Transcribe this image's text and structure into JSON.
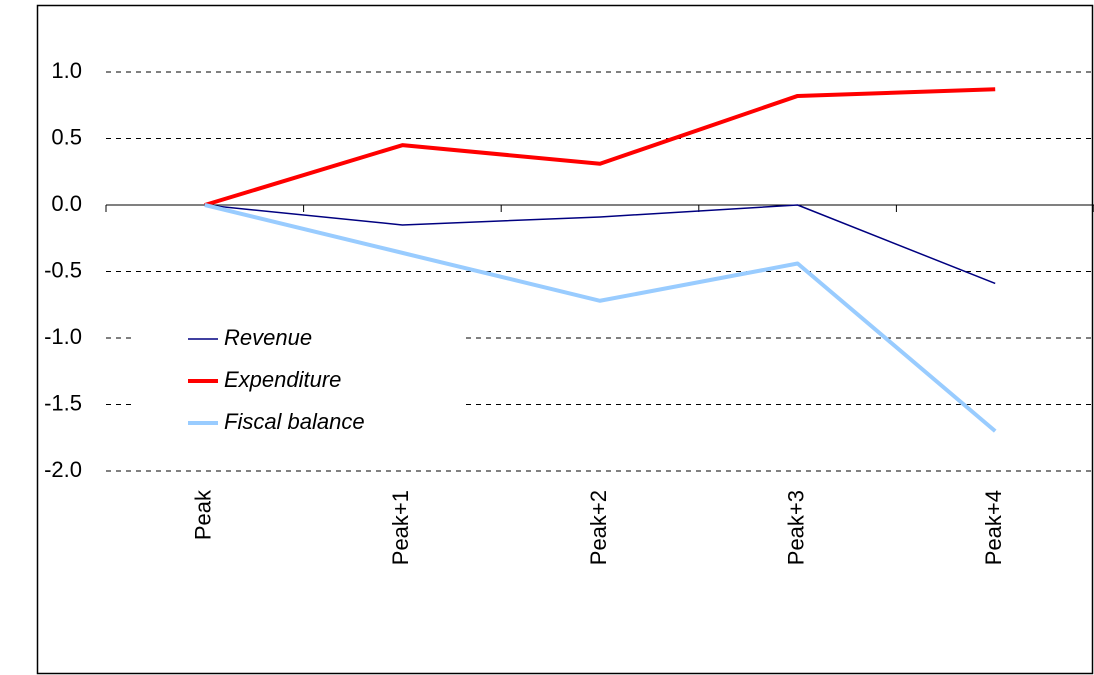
{
  "chart_data": {
    "type": "line",
    "categories": [
      "Peak",
      "Peak+1",
      "Peak+2",
      "Peak+3",
      "Peak+4"
    ],
    "series": [
      {
        "name": "Revenue",
        "color": "#000080",
        "values": [
          0,
          -0.15,
          -0.09,
          0.0,
          -0.59
        ]
      },
      {
        "name": "Expenditure",
        "color": "#ff0000",
        "values": [
          0,
          0.45,
          0.31,
          0.82,
          0.87
        ]
      },
      {
        "name": "Fiscal balance",
        "color": "#99ccff",
        "values": [
          0,
          -0.36,
          -0.72,
          -0.44,
          -1.7
        ]
      }
    ],
    "ylim": [
      -2,
      1
    ],
    "yticks": [
      {
        "value": 1,
        "label": "1.0"
      },
      0.5,
      {
        "value": 0,
        "label": "0.0"
      },
      -0.5,
      {
        "value": -1,
        "label": "-1.0"
      },
      -1.5,
      {
        "value": -2,
        "label": "-2.0"
      }
    ],
    "grid": true,
    "legend": "lower-left"
  }
}
